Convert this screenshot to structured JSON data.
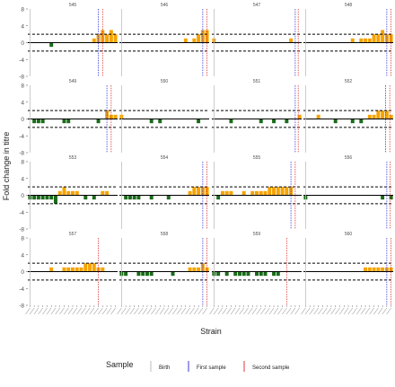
{
  "colors": {
    "positive": "#f5a300",
    "negative": "#1a6b1a",
    "birth": "#bdbdbd",
    "first_sample": "#3a3adb",
    "second_sample": "#e03535",
    "zero_line": "#000000",
    "threshold_line": "#000000"
  },
  "chart_data": {
    "type": "bar",
    "xlabel": "Strain",
    "ylabel": "Fold change in titre",
    "ylim": [
      -8,
      8
    ],
    "yticks": [
      -8,
      -4,
      0,
      4,
      8
    ],
    "threshold_lines": [
      2,
      -2
    ],
    "legend": {
      "title": "Sample",
      "placement": "bottom",
      "entries": [
        {
          "label": "Birth",
          "color_key": "birth"
        },
        {
          "label": "First sample",
          "color_key": "first_sample"
        },
        {
          "label": "Second sample",
          "color_key": "second_sample"
        }
      ]
    },
    "n_strains": 21,
    "panels": [
      {
        "id": "545",
        "values": [
          0,
          0,
          0,
          0,
          0,
          -1,
          0,
          0,
          0,
          0,
          0,
          0,
          0,
          0,
          0,
          1,
          2,
          3,
          2,
          3,
          2
        ],
        "birth": 0.5,
        "first": 16.5,
        "second": 17.5
      },
      {
        "id": "546",
        "values": [
          0,
          0,
          0,
          0,
          0,
          0,
          0,
          0,
          0,
          0,
          0,
          0,
          0,
          0,
          0,
          1,
          0,
          1,
          2,
          3,
          3
        ],
        "birth": 0.5,
        "first": 19.5,
        "second": 20.5
      },
      {
        "id": "547",
        "values": [
          1,
          0,
          0,
          0,
          0,
          0,
          0,
          0,
          0,
          0,
          0,
          0,
          0,
          0,
          0,
          0,
          0,
          0,
          1,
          0,
          0
        ],
        "birth": 0.5,
        "first": 19.5,
        "second": 20.2
      },
      {
        "id": "548",
        "values": [
          0,
          0,
          0,
          0,
          0,
          0,
          0,
          0,
          0,
          0,
          0,
          1,
          0,
          1,
          1,
          1,
          2,
          2,
          3,
          2,
          2
        ],
        "birth": 0.5,
        "first": 19.5,
        "second": 20.5
      },
      {
        "id": "549",
        "values": [
          0,
          -1,
          -1,
          -1,
          0,
          0,
          0,
          0,
          -1,
          -1,
          0,
          0,
          0,
          0,
          0,
          0,
          -1,
          0,
          2,
          1,
          1
        ],
        "birth": 0.5,
        "first": 18.5,
        "second": 19.5
      },
      {
        "id": "550",
        "values": [
          1,
          0,
          0,
          0,
          0,
          0,
          0,
          -1,
          0,
          -1,
          0,
          0,
          0,
          0,
          0,
          0,
          0,
          0,
          -1,
          0,
          0
        ],
        "birth": 0.5,
        "first": -1,
        "second": -1
      },
      {
        "id": "551",
        "values": [
          0,
          0,
          0,
          0,
          -1,
          0,
          0,
          0,
          0,
          0,
          0,
          -1,
          0,
          0,
          -1,
          0,
          0,
          -1,
          0,
          0,
          1
        ],
        "birth": 0.5,
        "first": 19.5,
        "second": 20.2
      },
      {
        "id": "552",
        "values": [
          0,
          0,
          0,
          1,
          0,
          0,
          0,
          -1,
          0,
          0,
          0,
          -1,
          0,
          -1,
          0,
          1,
          1,
          2,
          2,
          2,
          1
        ],
        "birth": 0.5,
        "first": 19.2,
        "second": 20.2
      },
      {
        "id": "553",
        "values": [
          -1,
          -1,
          -1,
          -1,
          -1,
          -1,
          -2,
          1,
          2,
          1,
          1,
          1,
          0,
          -1,
          0,
          -1,
          0,
          1,
          1,
          0,
          0
        ],
        "birth": 0.5,
        "first": -1,
        "second": -1
      },
      {
        "id": "554",
        "values": [
          0,
          -1,
          -1,
          -1,
          -1,
          0,
          0,
          -1,
          0,
          0,
          0,
          -1,
          0,
          0,
          0,
          0,
          1,
          2,
          2,
          2,
          2
        ],
        "birth": 0.5,
        "first": 19.5,
        "second": 20.5
      },
      {
        "id": "555",
        "values": [
          0,
          -1,
          1,
          1,
          1,
          0,
          0,
          1,
          0,
          1,
          1,
          1,
          1,
          2,
          2,
          2,
          2,
          2,
          2,
          0,
          0
        ],
        "birth": 0.5,
        "first": 18.5,
        "second": 19.5
      },
      {
        "id": "556",
        "values": [
          -1,
          0,
          0,
          0,
          0,
          0,
          0,
          0,
          0,
          0,
          0,
          0,
          0,
          0,
          0,
          0,
          0,
          0,
          -1,
          0,
          -1
        ],
        "birth": 0.5,
        "first": 19.5,
        "second": 20.3
      },
      {
        "id": "557",
        "values": [
          0,
          0,
          0,
          0,
          0,
          1,
          0,
          0,
          1,
          1,
          1,
          1,
          1,
          2,
          2,
          2,
          1,
          1,
          0,
          0,
          0
        ],
        "birth": 0.5,
        "first": -1,
        "second": 16.5
      },
      {
        "id": "558",
        "values": [
          -1,
          -1,
          0,
          0,
          -1,
          -1,
          -1,
          -1,
          0,
          0,
          0,
          0,
          -1,
          0,
          0,
          0,
          1,
          1,
          1,
          2,
          1
        ],
        "birth": 0.5,
        "first": 19.5,
        "second": 20.5
      },
      {
        "id": "559",
        "values": [
          -1,
          -1,
          0,
          -1,
          0,
          -1,
          -1,
          -1,
          -1,
          0,
          -1,
          -1,
          -1,
          0,
          -1,
          -1,
          0,
          0,
          0,
          0,
          0
        ],
        "birth": 0.5,
        "first": -1,
        "second": 17.5
      },
      {
        "id": "560",
        "values": [
          0,
          0,
          0,
          0,
          0,
          0,
          0,
          0,
          0,
          0,
          0,
          0,
          0,
          0,
          1,
          1,
          1,
          1,
          1,
          1,
          1
        ],
        "birth": 0.5,
        "first": 19.5,
        "second": 20.5
      }
    ]
  }
}
